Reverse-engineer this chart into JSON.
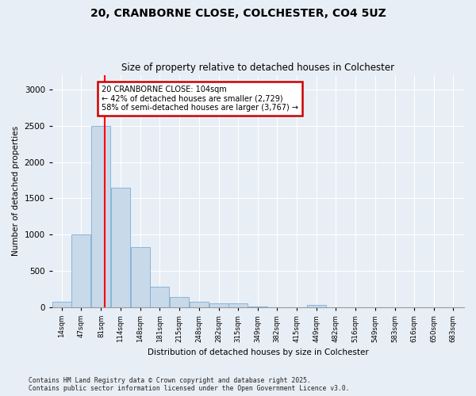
{
  "title1": "20, CRANBORNE CLOSE, COLCHESTER, CO4 5UZ",
  "title2": "Size of property relative to detached houses in Colchester",
  "xlabel": "Distribution of detached houses by size in Colchester",
  "ylabel": "Number of detached properties",
  "bins": [
    14,
    47,
    81,
    114,
    148,
    181,
    215,
    248,
    282,
    315,
    349,
    382,
    415,
    449,
    482,
    516,
    549,
    583,
    616,
    650,
    683
  ],
  "values": [
    70,
    1000,
    2500,
    1650,
    830,
    280,
    140,
    70,
    55,
    50,
    10,
    0,
    0,
    30,
    0,
    0,
    0,
    0,
    0,
    0,
    0
  ],
  "bar_color": "#c8d9ea",
  "bar_edge_color": "#7aafd4",
  "red_line_x": 104,
  "annotation_title": "20 CRANBORNE CLOSE: 104sqm",
  "annotation_line1": "← 42% of detached houses are smaller (2,729)",
  "annotation_line2": "58% of semi-detached houses are larger (3,767) →",
  "annotation_box_color": "#ffffff",
  "annotation_box_edge": "#cc0000",
  "ylim": [
    0,
    3200
  ],
  "yticks": [
    0,
    500,
    1000,
    1500,
    2000,
    2500,
    3000
  ],
  "footnote1": "Contains HM Land Registry data © Crown copyright and database right 2025.",
  "footnote2": "Contains public sector information licensed under the Open Government Licence v3.0.",
  "bg_color": "#e8eef5"
}
